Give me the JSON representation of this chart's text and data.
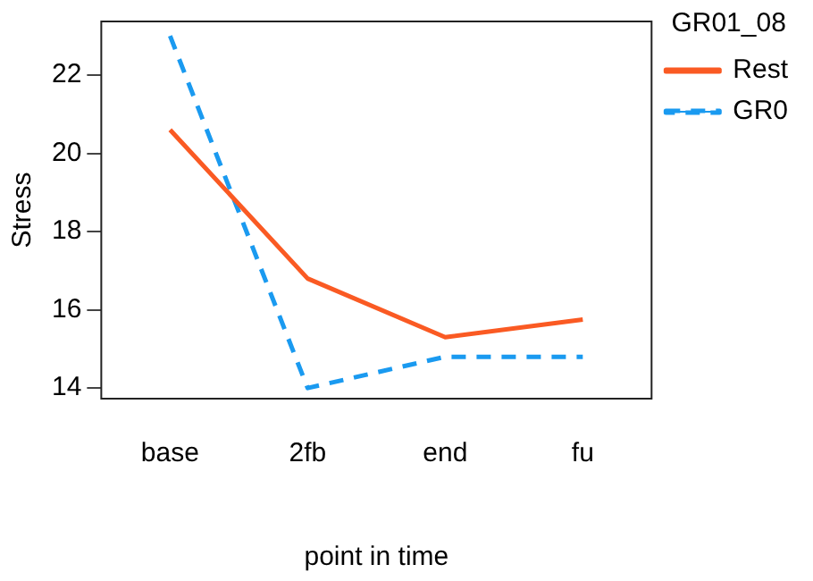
{
  "chart_data": {
    "type": "line",
    "xlabel": "point in time",
    "ylabel": "Stress",
    "legend_title": "GR01_08",
    "categories": [
      "base",
      "2fb",
      "end",
      "fu"
    ],
    "series": [
      {
        "name": "Rest",
        "color": "#fa5a23",
        "values": [
          20.6,
          16.8,
          15.3,
          15.75
        ],
        "line_style": "solid"
      },
      {
        "name": "GR0",
        "color": "#1a9af0",
        "values": [
          23.0,
          14.0,
          14.8,
          14.8
        ],
        "line_style": "dashed"
      }
    ],
    "ylim": [
      13.73,
      23.37
    ],
    "yticks": [
      14,
      16,
      18,
      20,
      22
    ],
    "grid": false,
    "legend": "right",
    "marker": "none"
  }
}
